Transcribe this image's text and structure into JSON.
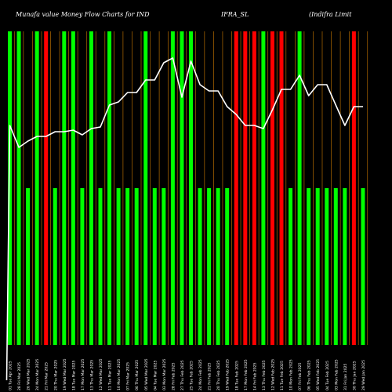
{
  "header": {
    "left": "Munafa value Money Flow  Charts for IND",
    "middle": "IFRA_SL",
    "right": "(Indifra  Limit"
  },
  "chart_data": {
    "type": "bar",
    "title": "Munafa value Money Flow  Charts for IND IFRA_SL (Indifra  Limit",
    "categories": [
      "01 Tue Apr 2025",
      "28 Fri Mar 2025",
      "26 Wed Mar 2025",
      "24 Mon Mar 2025",
      "21 Fri Mar 2025",
      "20 Thu Mar 2025",
      "19 Wed Mar 2025",
      "18 Tue Mar 2025",
      "17 Mon Mar 2025",
      "13 Thu Mar 2025",
      "12 Wed Mar 2025",
      "11 Tue Mar 2025",
      "10 Mon Mar 2025",
      "07 Fri Mar 2025",
      "06 Thu Mar 2025",
      "05 Wed Mar 2025",
      "04 Tue Mar 2025",
      "03 Mon Mar 2025",
      "28 Fri Feb 2025",
      "27 Thu Feb 2025",
      "25 Tue Feb 2025",
      "24 Mon Feb 2025",
      "21 Fri Feb 2025",
      "20 Thu Feb 2025",
      "19 Wed Feb 2025",
      "18 Tue Feb 2025",
      "17 Mon Feb 2025",
      "14 Fri Feb 2025",
      "13 Thu Feb 2025",
      "12 Wed Feb 2025",
      "11 Tue Feb 2025",
      "10 Mon Feb 2025",
      "07 Fri Feb 2025",
      "06 Thu Feb 2025",
      "05 Wed Feb 2025",
      "04 Tue Feb 2025",
      "03 Mon Feb 2025",
      "31 Fri Jan 2025",
      "30 Thu Jan 2025",
      "29 Wed Jan 2025"
    ],
    "series": [
      {
        "values": [
          100,
          100,
          50,
          100,
          100,
          50,
          100,
          100,
          50,
          100,
          50,
          100,
          50,
          50,
          50,
          100,
          50,
          50,
          100,
          100,
          100,
          50,
          50,
          50,
          50,
          100,
          100,
          100,
          100,
          100,
          100,
          50,
          100,
          50,
          50,
          50,
          50,
          50,
          100,
          50
        ],
        "colors": [
          "green",
          "green",
          "green",
          "green",
          "red",
          "green",
          "green",
          "green",
          "green",
          "green",
          "green",
          "green",
          "green",
          "green",
          "green",
          "green",
          "green",
          "green",
          "green",
          "green",
          "green",
          "green",
          "green",
          "green",
          "green",
          "red",
          "red",
          "red",
          "green",
          "red",
          "red",
          "green",
          "green",
          "green",
          "green",
          "green",
          "green",
          "green",
          "red",
          "green"
        ]
      },
      {
        "values": [
          140,
          126,
          130,
          133,
          133,
          136,
          136,
          137,
          134,
          138,
          139,
          153,
          155,
          161,
          161,
          169,
          169,
          180,
          183,
          158,
          181,
          166,
          162,
          162,
          152,
          147,
          140,
          140,
          138,
          150,
          163,
          163,
          172,
          159,
          166,
          166,
          153,
          140,
          152,
          152
        ]
      }
    ],
    "bar_scale_max": 100,
    "line_range": [
      0,
      200
    ],
    "colors": {
      "green": "#00ff00",
      "red": "#ff0000",
      "line": "#ffffff",
      "grid": "#b36b00"
    },
    "grid": true
  }
}
